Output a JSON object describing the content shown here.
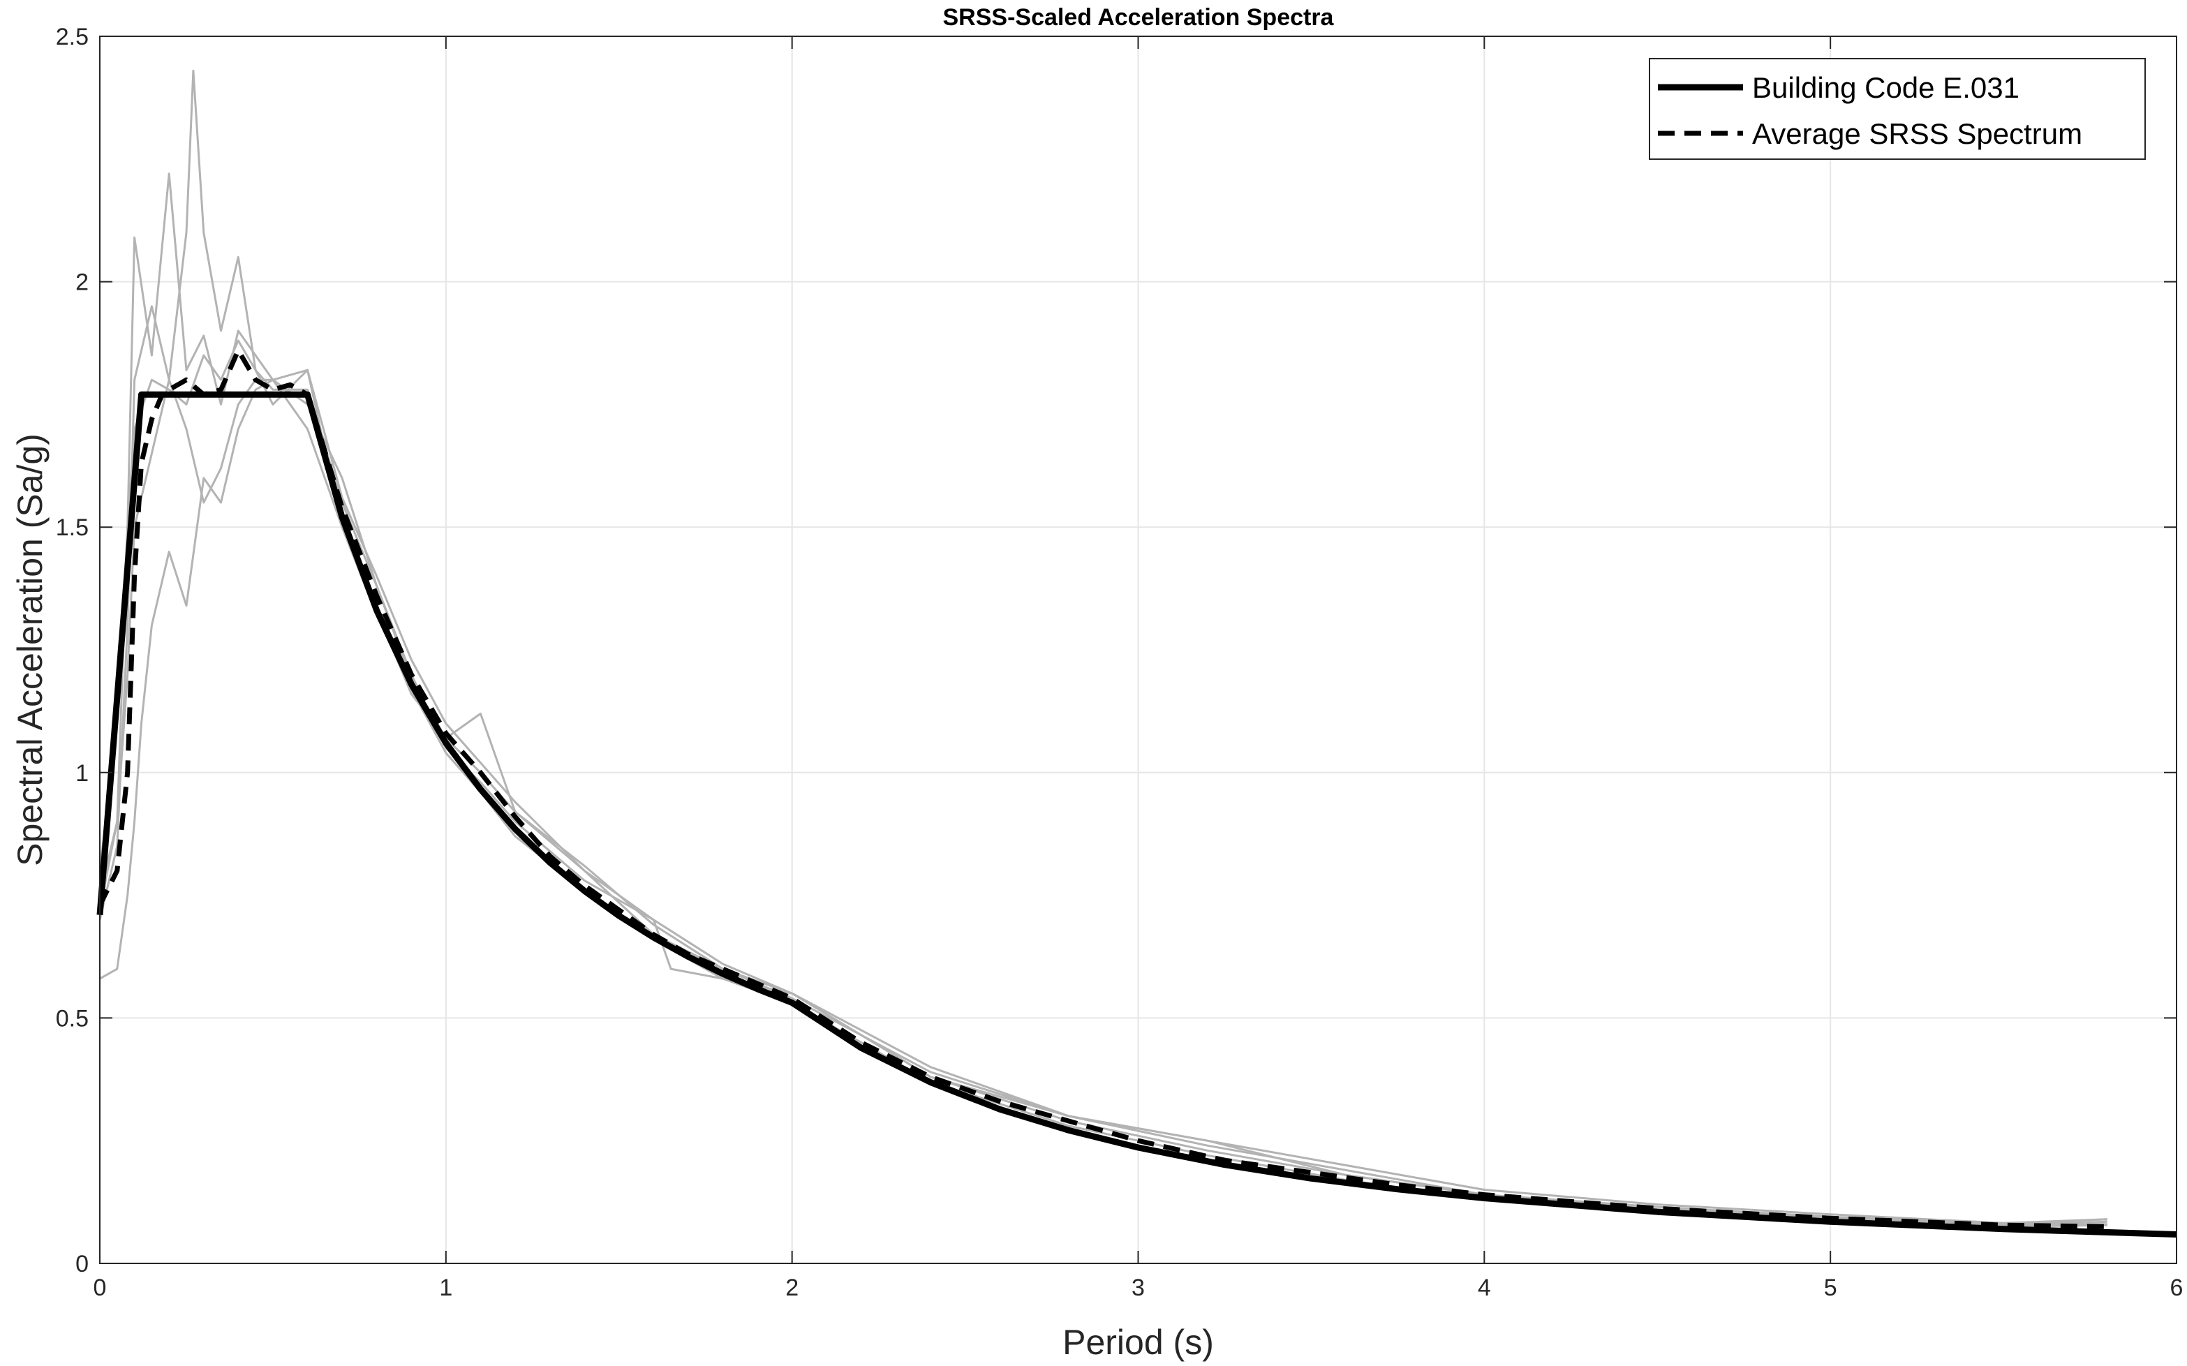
{
  "chart_data": {
    "type": "line",
    "title": "SRSS-Scaled Acceleration Spectra",
    "xlabel": "Period (s)",
    "ylabel": "Spectral Acceleration (Sa/g)",
    "xlim": [
      0,
      6
    ],
    "ylim": [
      0,
      2.5
    ],
    "xticks": [
      0,
      1,
      2,
      3,
      4,
      5,
      6
    ],
    "yticks": [
      0,
      0.5,
      1,
      1.5,
      2,
      2.5
    ],
    "xtick_labels": [
      "0",
      "1",
      "2",
      "3",
      "4",
      "5",
      "6"
    ],
    "ytick_labels": [
      "0",
      "0.5",
      "1",
      "1.5",
      "2",
      "2.5"
    ],
    "grid": true,
    "legend_position": "top-right",
    "colors": {
      "code": "#000000",
      "average": "#000000",
      "records": "#b3b3b3",
      "grid": "#e6e6e6",
      "axis": "#262626"
    },
    "series": [
      {
        "name": "Building Code E.031",
        "style": "solid",
        "x": [
          0,
          0.12,
          0.6,
          0.7,
          0.8,
          0.9,
          1.0,
          1.1,
          1.2,
          1.3,
          1.4,
          1.5,
          1.6,
          1.7,
          1.8,
          1.9,
          2.0,
          2.2,
          2.4,
          2.6,
          2.8,
          3.0,
          3.25,
          3.5,
          3.75,
          4.0,
          4.5,
          5.0,
          5.5,
          6.0
        ],
        "y": [
          0.71,
          1.77,
          1.77,
          1.52,
          1.33,
          1.18,
          1.06,
          0.966,
          0.885,
          0.817,
          0.759,
          0.708,
          0.664,
          0.625,
          0.59,
          0.559,
          0.531,
          0.439,
          0.369,
          0.314,
          0.271,
          0.236,
          0.201,
          0.173,
          0.151,
          0.133,
          0.105,
          0.085,
          0.07,
          0.059
        ]
      },
      {
        "name": "Average SRSS Spectrum",
        "style": "dashed",
        "x": [
          0,
          0.05,
          0.08,
          0.1,
          0.12,
          0.15,
          0.18,
          0.2,
          0.25,
          0.3,
          0.35,
          0.4,
          0.45,
          0.5,
          0.55,
          0.6,
          0.7,
          0.8,
          0.9,
          1.0,
          1.05,
          1.1,
          1.2,
          1.3,
          1.4,
          1.5,
          1.6,
          1.7,
          1.8,
          1.9,
          2.0,
          2.2,
          2.4,
          2.6,
          2.8,
          3.0,
          3.25,
          3.5,
          3.75,
          4.0,
          4.5,
          5.0,
          5.5,
          5.8
        ],
        "y": [
          0.73,
          0.8,
          1.0,
          1.4,
          1.63,
          1.72,
          1.77,
          1.78,
          1.8,
          1.77,
          1.78,
          1.86,
          1.8,
          1.78,
          1.79,
          1.77,
          1.54,
          1.36,
          1.2,
          1.08,
          1.04,
          1.0,
          0.91,
          0.83,
          0.77,
          0.72,
          0.67,
          0.63,
          0.6,
          0.57,
          0.54,
          0.45,
          0.38,
          0.33,
          0.29,
          0.25,
          0.21,
          0.185,
          0.16,
          0.14,
          0.112,
          0.092,
          0.078,
          0.075
        ]
      },
      {
        "name": "",
        "style": "record",
        "x": [
          0,
          0.05,
          0.08,
          0.1,
          0.15,
          0.2,
          0.25,
          0.3,
          0.35,
          0.4,
          0.45,
          0.5,
          0.6,
          0.7,
          0.8,
          0.9,
          1.0,
          1.1,
          1.2,
          1.4,
          1.6,
          1.8,
          2.0,
          2.4,
          2.8,
          3.2,
          3.6,
          4.0,
          4.5,
          5.0,
          5.5,
          5.8
        ],
        "y": [
          0.72,
          0.9,
          1.5,
          2.09,
          1.85,
          2.22,
          1.82,
          1.89,
          1.75,
          1.9,
          1.85,
          1.8,
          1.82,
          1.56,
          1.4,
          1.23,
          1.1,
          1.02,
          0.94,
          0.8,
          0.7,
          0.61,
          0.55,
          0.4,
          0.3,
          0.25,
          0.18,
          0.14,
          0.115,
          0.095,
          0.08,
          0.09
        ]
      },
      {
        "name": "",
        "style": "record",
        "x": [
          0,
          0.05,
          0.08,
          0.1,
          0.15,
          0.2,
          0.25,
          0.27,
          0.3,
          0.35,
          0.4,
          0.45,
          0.5,
          0.6,
          0.7,
          0.8,
          0.9,
          1.0,
          1.1,
          1.2,
          1.4,
          1.6,
          1.8,
          2.0,
          2.4,
          2.8,
          3.2,
          3.6,
          4.0,
          4.5,
          5.0,
          5.5,
          5.8
        ],
        "y": [
          0.7,
          0.85,
          1.3,
          1.8,
          1.95,
          1.8,
          2.1,
          2.43,
          2.1,
          1.9,
          2.05,
          1.82,
          1.75,
          1.82,
          1.5,
          1.33,
          1.16,
          1.07,
          1.12,
          0.92,
          0.8,
          0.67,
          0.6,
          0.54,
          0.39,
          0.3,
          0.24,
          0.19,
          0.14,
          0.11,
          0.093,
          0.078,
          0.085
        ]
      },
      {
        "name": "",
        "style": "record",
        "x": [
          0,
          0.05,
          0.08,
          0.1,
          0.12,
          0.15,
          0.2,
          0.25,
          0.3,
          0.35,
          0.4,
          0.45,
          0.5,
          0.6,
          0.7,
          0.8,
          0.9,
          1.0,
          1.1,
          1.2,
          1.4,
          1.6,
          1.65,
          1.8,
          2.0,
          2.4,
          2.8,
          3.2,
          3.6,
          4.0,
          4.5,
          5.0,
          5.5,
          5.8
        ],
        "y": [
          0.58,
          0.6,
          0.75,
          0.9,
          1.1,
          1.3,
          1.45,
          1.34,
          1.6,
          1.55,
          1.7,
          1.78,
          1.8,
          1.75,
          1.6,
          1.38,
          1.2,
          1.05,
          0.98,
          0.9,
          0.78,
          0.7,
          0.6,
          0.58,
          0.55,
          0.38,
          0.29,
          0.23,
          0.18,
          0.14,
          0.11,
          0.09,
          0.076,
          0.08
        ]
      },
      {
        "name": "",
        "style": "record",
        "x": [
          0,
          0.05,
          0.08,
          0.1,
          0.15,
          0.2,
          0.25,
          0.3,
          0.35,
          0.4,
          0.45,
          0.5,
          0.6,
          0.7,
          0.8,
          0.9,
          1.0,
          1.1,
          1.2,
          1.4,
          1.6,
          1.8,
          2.0,
          2.4,
          2.8,
          3.2,
          3.6,
          4.0,
          4.5,
          5.0,
          5.5,
          5.8
        ],
        "y": [
          0.8,
          1.1,
          1.5,
          1.7,
          1.8,
          1.78,
          1.75,
          1.85,
          1.8,
          1.88,
          1.82,
          1.78,
          1.78,
          1.55,
          1.38,
          1.19,
          1.07,
          1.0,
          0.92,
          0.81,
          0.69,
          0.6,
          0.55,
          0.38,
          0.3,
          0.25,
          0.2,
          0.15,
          0.12,
          0.1,
          0.082,
          0.09
        ]
      },
      {
        "name": "",
        "style": "record",
        "x": [
          0,
          0.05,
          0.08,
          0.1,
          0.15,
          0.2,
          0.25,
          0.3,
          0.35,
          0.4,
          0.45,
          0.5,
          0.6,
          0.7,
          0.8,
          0.9,
          1.0,
          1.1,
          1.2,
          1.4,
          1.6,
          1.8,
          2.0,
          2.4,
          2.8,
          3.2,
          3.6,
          4.0,
          4.5,
          5.0,
          5.5,
          5.8
        ],
        "y": [
          0.75,
          0.9,
          1.2,
          1.5,
          1.65,
          1.8,
          1.7,
          1.55,
          1.62,
          1.75,
          1.8,
          1.8,
          1.7,
          1.5,
          1.32,
          1.17,
          1.04,
          0.96,
          0.87,
          0.76,
          0.66,
          0.58,
          0.53,
          0.37,
          0.28,
          0.22,
          0.17,
          0.13,
          0.105,
          0.088,
          0.075,
          0.078
        ]
      }
    ]
  }
}
